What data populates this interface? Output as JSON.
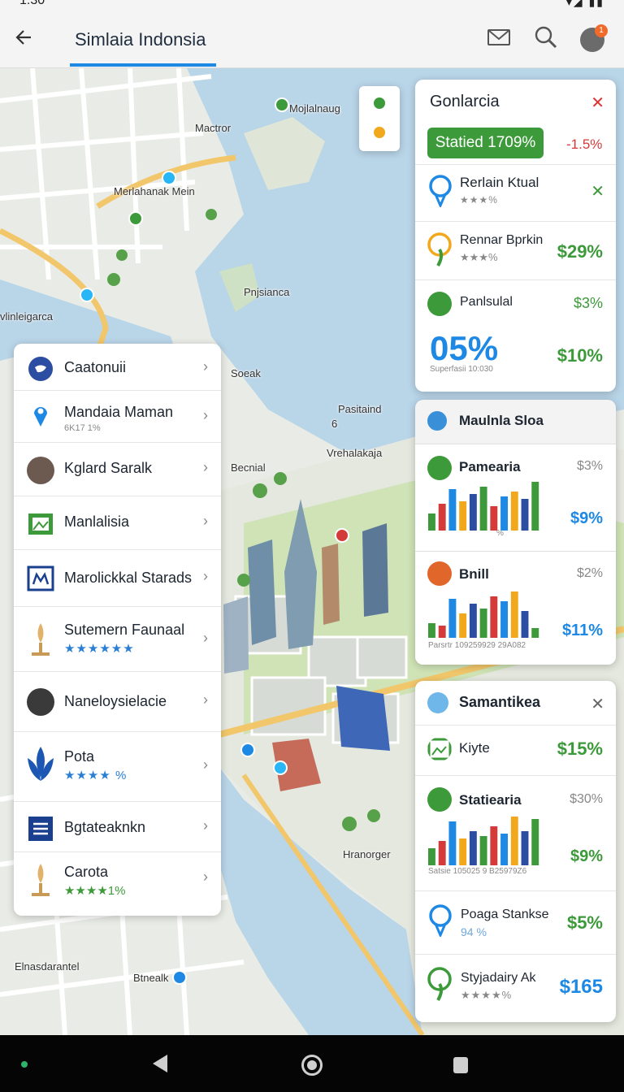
{
  "status": {
    "left": "1:30",
    "right": "▾◢ ▮▮"
  },
  "appbar": {
    "title": "Simlaia  Indonsia",
    "notification_count": "1"
  },
  "map_labels": {
    "l1": "Mactror",
    "l2": "Mojlalnaug",
    "l3": "Merlahanak Mein",
    "l4": "Pnjsianca",
    "l5": "vlinleigarca",
    "l6": "Soeak",
    "l7": "Pasitaind",
    "l8": "6",
    "l9": "Vrehalakaja",
    "l10": "Becnial",
    "l11": "Hranorger",
    "l12": "Elnasdarantel",
    "l13": "Btnealk"
  },
  "list": {
    "items": [
      {
        "label": "Caatonuii",
        "icon": "globe-icon"
      },
      {
        "label": "Mandaia Maman",
        "sub": "6K17 1%",
        "icon": "location-pin-icon"
      },
      {
        "label": "Kglard Saralk",
        "icon": "avatar-icon"
      },
      {
        "label": "Manlalisia",
        "icon": "image-icon"
      },
      {
        "label": "Marolickkal Starads",
        "icon": "map-icon"
      },
      {
        "label": "Sutemern Faunaal",
        "sub": "★★★★★★",
        "icon": "trophy-icon"
      },
      {
        "label": "Naneloysielacie",
        "icon": "avatar-icon"
      },
      {
        "label": "Pota",
        "sub": "★★★★ %",
        "icon": "leaf-emblem-icon"
      },
      {
        "label": "Bgtateaknkn",
        "icon": "list-icon"
      },
      {
        "label": "Carota",
        "sub": "★★★★1%",
        "icon": "trophy-icon"
      }
    ]
  },
  "card1": {
    "title": "Gonlarcia",
    "badge": "Statied 1709%",
    "badge_delta": "-1.5%",
    "rows": [
      {
        "label": "Rerlain Ktual",
        "sub": "★★★%",
        "icon": "bulb-icon"
      },
      {
        "label": "Rennar Bprkin",
        "sub": "★★★%",
        "value": "$29%",
        "icon": "location-ring-icon"
      },
      {
        "label": "Panlsulal",
        "value": "$3%",
        "big": "05%",
        "big_sub": "Superfasii 10:030",
        "value2": "$10%",
        "icon": "chat-icon"
      }
    ]
  },
  "card2": {
    "title": "Maulnla Sloa",
    "rows": [
      {
        "label": "Pamearia",
        "value": "$3%",
        "value2": "$9%",
        "icon": "pin-icon",
        "chart_caption": "%",
        "bars": [
          0.35,
          0.55,
          0.85,
          0.6,
          0.75,
          0.9,
          0.5,
          0.7,
          0.8,
          0.65,
          1.0
        ]
      },
      {
        "label": "Bnill",
        "value": "$2%",
        "value2": "$11%",
        "icon": "compass-icon",
        "chart_caption": "Parsrtr 109259929 29A082",
        "bars": [
          0.3,
          0.25,
          0.8,
          0.5,
          0.7,
          0.6,
          0.85,
          0.75,
          0.95,
          0.55,
          0.2
        ]
      }
    ]
  },
  "card3": {
    "title": "Samantikea",
    "rows": [
      {
        "label": "Kiyte",
        "value": "$15%",
        "icon": "image-icon"
      },
      {
        "label": "Statiearia",
        "value": "$30%",
        "value2": "$9%",
        "icon": "chat-icon",
        "chart_caption": "Satsie 105025 9 B25979Z6",
        "bars": [
          0.35,
          0.5,
          0.9,
          0.55,
          0.7,
          0.6,
          0.8,
          0.65,
          1.0,
          0.7,
          0.95
        ]
      },
      {
        "label": "Poaga Stankse",
        "sub": "94 %",
        "value": "$5%",
        "icon": "bulb-icon"
      },
      {
        "label": "Styjadairy Ak",
        "sub": "★★★★%",
        "value": "$165",
        "icon": "location-ring-icon"
      }
    ]
  },
  "colors": {
    "accent": "#1e88e5",
    "green": "#3d9a3a",
    "red": "#d33b3b",
    "water": "#b9d5e8"
  }
}
